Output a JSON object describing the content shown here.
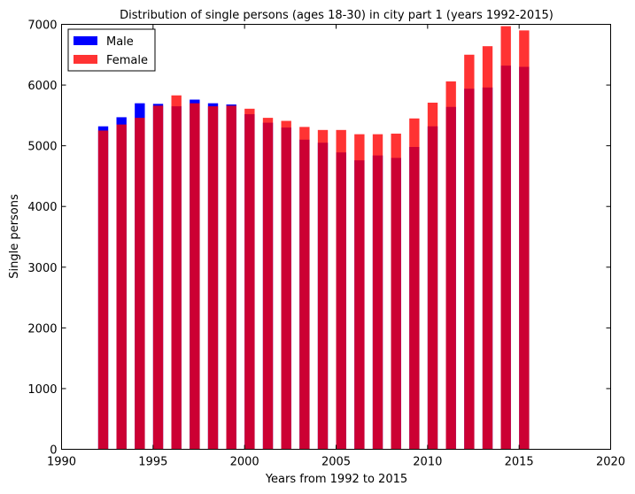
{
  "chart_data": {
    "type": "bar",
    "title": "Distribution of single persons (ages 18-30) in city part 1 (years 1992-2015)",
    "xlabel": "Years from 1992 to 2015",
    "ylabel": "Single persons",
    "xlim": [
      1990,
      2020
    ],
    "ylim": [
      0,
      7000
    ],
    "xticks": [
      1990,
      1995,
      2000,
      2005,
      2010,
      2015,
      2020
    ],
    "yticks": [
      0,
      1000,
      2000,
      3000,
      4000,
      5000,
      6000,
      7000
    ],
    "grid": false,
    "legend_position": "top-left",
    "x": [
      1992,
      1993,
      1994,
      1995,
      1996,
      1997,
      1998,
      1999,
      2000,
      2001,
      2002,
      2003,
      2004,
      2005,
      2006,
      2007,
      2008,
      2009,
      2010,
      2011,
      2012,
      2013,
      2014,
      2015
    ],
    "series": [
      {
        "name": "Male",
        "color": "#0000ff",
        "values": [
          5320,
          5470,
          5700,
          5690,
          5650,
          5760,
          5700,
          5680,
          5520,
          5380,
          5300,
          5100,
          5050,
          4890,
          4760,
          4840,
          4800,
          4980,
          5320,
          5640,
          5940,
          5960,
          6320,
          6300
        ]
      },
      {
        "name": "Female",
        "color": "#ff0000",
        "values": [
          5250,
          5350,
          5460,
          5660,
          5830,
          5700,
          5650,
          5660,
          5610,
          5460,
          5410,
          5310,
          5260,
          5260,
          5190,
          5190,
          5200,
          5450,
          5710,
          6060,
          6500,
          6640,
          6970,
          6900
        ]
      }
    ]
  }
}
